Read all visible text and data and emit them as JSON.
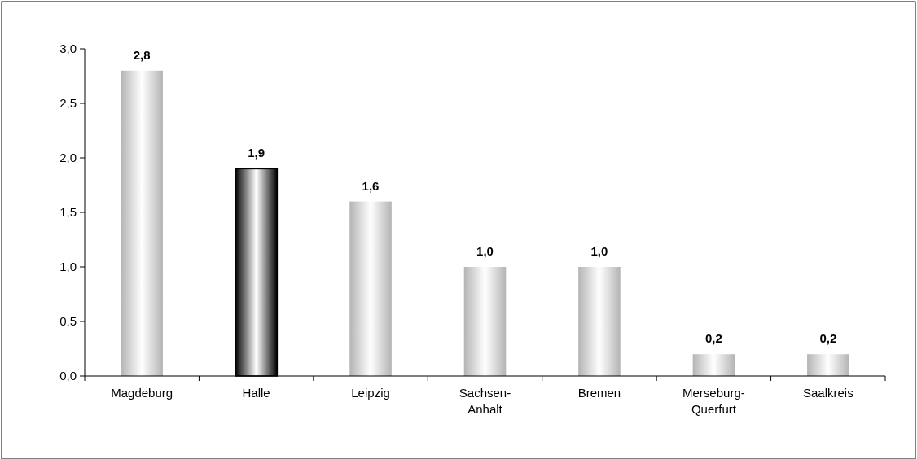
{
  "chart_data": {
    "type": "bar",
    "categories": [
      "Magdeburg",
      "Halle",
      "Leipzig",
      "Sachsen-Anhalt",
      "Bremen",
      "Merseburg-Querfurt",
      "Saalkreis"
    ],
    "values": [
      2.8,
      1.9,
      1.6,
      1.0,
      1.0,
      0.2,
      0.2
    ],
    "value_labels": [
      "2,8",
      "1,9",
      "1,6",
      "1,0",
      "1,0",
      "0,2",
      "0,2"
    ],
    "colors": [
      "#b4b4b4",
      "#000000",
      "#b4b4b4",
      "#b4b4b4",
      "#b4b4b4",
      "#b4b4b4",
      "#b4b4b4"
    ],
    "ylim": [
      0,
      3
    ],
    "yticks": [
      {
        "value": 0,
        "label": "0,0"
      },
      {
        "value": 0.5,
        "label": "0,5"
      },
      {
        "value": 1,
        "label": "1,0"
      },
      {
        "value": 1.5,
        "label": "1,5"
      },
      {
        "value": 2,
        "label": "2,0"
      },
      {
        "value": 2.5,
        "label": "2,5"
      },
      {
        "value": 3,
        "label": "3,0"
      }
    ],
    "grid": false
  }
}
